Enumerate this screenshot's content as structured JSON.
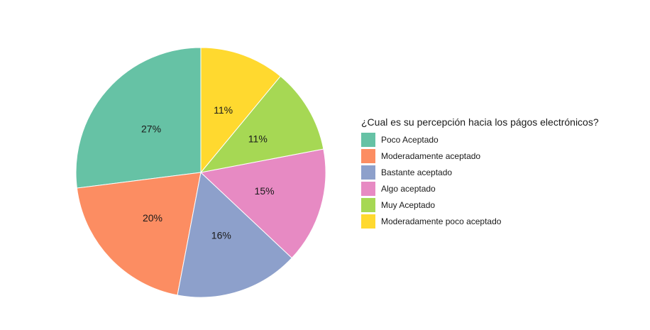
{
  "chart_data": {
    "type": "pie",
    "title": "",
    "legend_title": "¿Cual es su percepción hacia los págos electrónicos?",
    "legend_position": "right",
    "start_angle_deg": 0,
    "direction": "counterclockwise",
    "categories": [
      "Poco Aceptado",
      "Moderadamente aceptado",
      "Bastante aceptado",
      "Algo aceptado",
      "Muy Aceptado",
      "Moderadamente poco aceptado"
    ],
    "values": [
      27,
      20,
      16,
      15,
      11,
      11
    ],
    "labels": [
      "27%",
      "20%",
      "16%",
      "15%",
      "11%",
      "11%"
    ],
    "colors": [
      "#66c2a5",
      "#fc8d62",
      "#8da0cb",
      "#e78ac3",
      "#a6d854",
      "#ffd92f"
    ]
  },
  "legend": {
    "title": "¿Cual es su percepción hacia los págos electrónicos?",
    "items": [
      {
        "label": "Poco Aceptado",
        "color": "#66c2a5"
      },
      {
        "label": "Moderadamente aceptado",
        "color": "#fc8d62"
      },
      {
        "label": "Bastante aceptado",
        "color": "#8da0cb"
      },
      {
        "label": "Algo aceptado",
        "color": "#e78ac3"
      },
      {
        "label": "Muy Aceptado",
        "color": "#a6d854"
      },
      {
        "label": "Moderadamente poco aceptado",
        "color": "#ffd92f"
      }
    ]
  }
}
